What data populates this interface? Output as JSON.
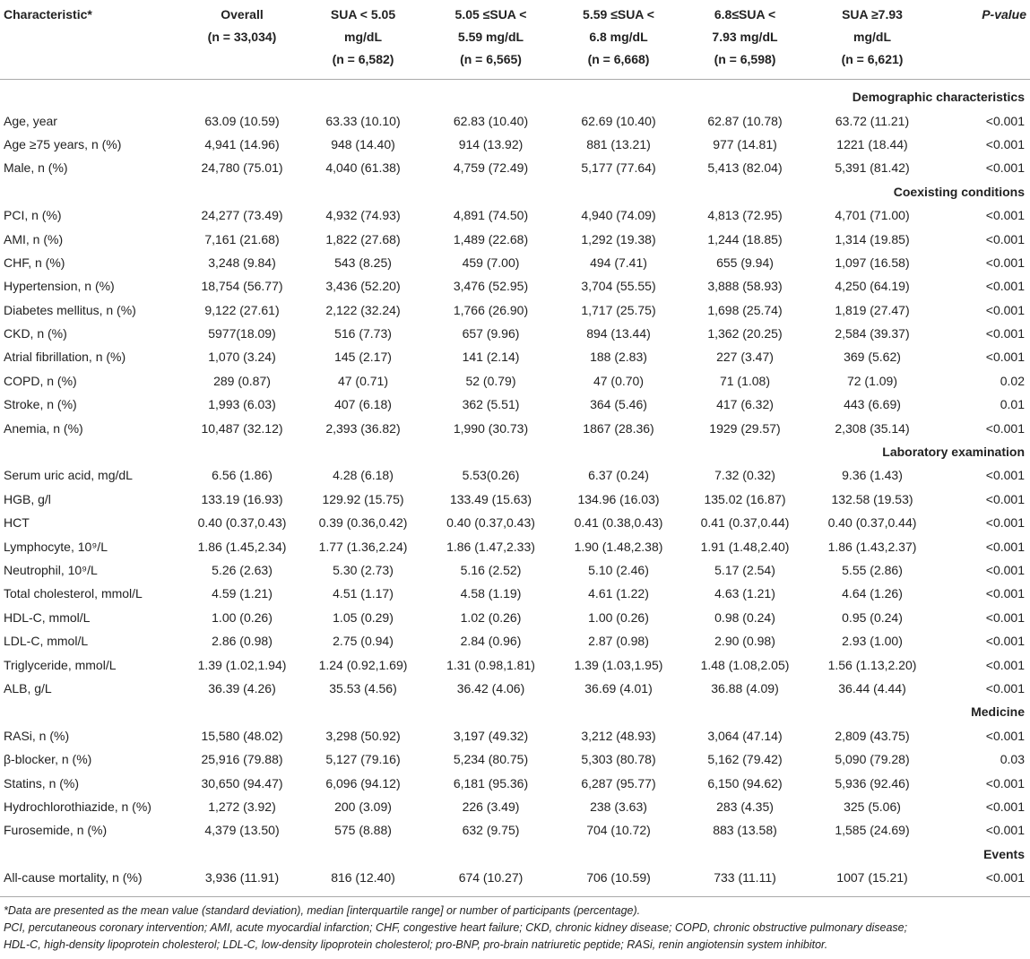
{
  "header": {
    "columns": [
      [
        "Characteristic*"
      ],
      [
        "Overall",
        "(n = 33,034)"
      ],
      [
        "SUA < 5.05",
        "mg/dL",
        "(n = 6,582)"
      ],
      [
        "5.05 ≤SUA <",
        "5.59 mg/dL",
        "(n = 6,565)"
      ],
      [
        "5.59 ≤SUA <",
        "6.8 mg/dL",
        "(n = 6,668)"
      ],
      [
        "6.8≤SUA <",
        "7.93 mg/dL",
        "(n = 6,598)"
      ],
      [
        "SUA ≥7.93",
        "mg/dL",
        "(n = 6,621)"
      ],
      [
        "P-value"
      ]
    ]
  },
  "sections": [
    {
      "title": "Demographic characteristics",
      "rows": [
        [
          "Age, year",
          "63.09 (10.59)",
          "63.33 (10.10)",
          "62.83 (10.40)",
          "62.69 (10.40)",
          "62.87 (10.78)",
          "63.72 (11.21)",
          "<0.001"
        ],
        [
          "Age ≥75 years, n (%)",
          "4,941 (14.96)",
          "948 (14.40)",
          "914 (13.92)",
          "881 (13.21)",
          "977 (14.81)",
          "1221 (18.44)",
          "<0.001"
        ],
        [
          "Male, n (%)",
          "24,780 (75.01)",
          "4,040 (61.38)",
          "4,759 (72.49)",
          "5,177 (77.64)",
          "5,413 (82.04)",
          "5,391 (81.42)",
          "<0.001"
        ]
      ]
    },
    {
      "title": "Coexisting conditions",
      "rows": [
        [
          "PCI, n (%)",
          "24,277 (73.49)",
          "4,932 (74.93)",
          "4,891 (74.50)",
          "4,940 (74.09)",
          "4,813 (72.95)",
          "4,701 (71.00)",
          "<0.001"
        ],
        [
          "AMI, n (%)",
          "7,161 (21.68)",
          "1,822 (27.68)",
          "1,489 (22.68)",
          "1,292 (19.38)",
          "1,244 (18.85)",
          "1,314 (19.85)",
          "<0.001"
        ],
        [
          "CHF, n (%)",
          "3,248 (9.84)",
          "543 (8.25)",
          "459 (7.00)",
          "494 (7.41)",
          "655 (9.94)",
          "1,097 (16.58)",
          "<0.001"
        ],
        [
          "Hypertension, n (%)",
          "18,754 (56.77)",
          "3,436 (52.20)",
          "3,476 (52.95)",
          "3,704 (55.55)",
          "3,888 (58.93)",
          "4,250 (64.19)",
          "<0.001"
        ],
        [
          "Diabetes mellitus, n (%)",
          "9,122 (27.61)",
          "2,122 (32.24)",
          "1,766 (26.90)",
          "1,717 (25.75)",
          "1,698 (25.74)",
          "1,819 (27.47)",
          "<0.001"
        ],
        [
          "CKD, n (%)",
          "5977(18.09)",
          "516 (7.73)",
          "657 (9.96)",
          "894 (13.44)",
          "1,362 (20.25)",
          "2,584 (39.37)",
          "<0.001"
        ],
        [
          "Atrial fibrillation, n (%)",
          "1,070 (3.24)",
          "145 (2.17)",
          "141 (2.14)",
          "188 (2.83)",
          "227 (3.47)",
          "369 (5.62)",
          "<0.001"
        ],
        [
          "COPD, n (%)",
          "289 (0.87)",
          "47 (0.71)",
          "52 (0.79)",
          "47 (0.70)",
          "71 (1.08)",
          "72 (1.09)",
          "0.02"
        ],
        [
          "Stroke, n (%)",
          "1,993 (6.03)",
          "407 (6.18)",
          "362 (5.51)",
          "364 (5.46)",
          "417 (6.32)",
          "443 (6.69)",
          "0.01"
        ],
        [
          "Anemia, n (%)",
          "10,487 (32.12)",
          "2,393 (36.82)",
          "1,990 (30.73)",
          "1867 (28.36)",
          "1929 (29.57)",
          "2,308 (35.14)",
          "<0.001"
        ]
      ]
    },
    {
      "title": "Laboratory examination",
      "rows": [
        [
          "Serum uric acid, mg/dL",
          "6.56 (1.86)",
          "4.28 (6.18)",
          "5.53(0.26)",
          "6.37 (0.24)",
          "7.32 (0.32)",
          "9.36 (1.43)",
          "<0.001"
        ],
        [
          "HGB, g/l",
          "133.19 (16.93)",
          "129.92 (15.75)",
          "133.49 (15.63)",
          "134.96 (16.03)",
          "135.02 (16.87)",
          "132.58 (19.53)",
          "<0.001"
        ],
        [
          "HCT",
          "0.40 (0.37,0.43)",
          "0.39 (0.36,0.42)",
          "0.40 (0.37,0.43)",
          "0.41 (0.38,0.43)",
          "0.41 (0.37,0.44)",
          "0.40 (0.37,0.44)",
          "<0.001"
        ],
        [
          "Lymphocyte, 10⁹/L",
          "1.86 (1.45,2.34)",
          "1.77 (1.36,2.24)",
          "1.86 (1.47,2.33)",
          "1.90 (1.48,2.38)",
          "1.91 (1.48,2.40)",
          "1.86 (1.43,2.37)",
          "<0.001"
        ],
        [
          "Neutrophil, 10⁹/L",
          "5.26 (2.63)",
          "5.30 (2.73)",
          "5.16 (2.52)",
          "5.10 (2.46)",
          "5.17 (2.54)",
          "5.55 (2.86)",
          "<0.001"
        ],
        [
          "Total cholesterol, mmol/L",
          "4.59 (1.21)",
          "4.51 (1.17)",
          "4.58 (1.19)",
          "4.61 (1.22)",
          "4.63 (1.21)",
          "4.64 (1.26)",
          "<0.001"
        ],
        [
          "HDL-C, mmol/L",
          "1.00 (0.26)",
          "1.05 (0.29)",
          "1.02 (0.26)",
          "1.00 (0.26)",
          "0.98 (0.24)",
          "0.95 (0.24)",
          "<0.001"
        ],
        [
          "LDL-C, mmol/L",
          "2.86 (0.98)",
          "2.75 (0.94)",
          "2.84 (0.96)",
          "2.87 (0.98)",
          "2.90 (0.98)",
          "2.93 (1.00)",
          "<0.001"
        ],
        [
          "Triglyceride, mmol/L",
          "1.39 (1.02,1.94)",
          "1.24 (0.92,1.69)",
          "1.31 (0.98,1.81)",
          "1.39 (1.03,1.95)",
          "1.48 (1.08,2.05)",
          "1.56 (1.13,2.20)",
          "<0.001"
        ],
        [
          "ALB, g/L",
          "36.39 (4.26)",
          "35.53 (4.56)",
          "36.42 (4.06)",
          "36.69 (4.01)",
          "36.88 (4.09)",
          "36.44 (4.44)",
          "<0.001"
        ]
      ]
    },
    {
      "title": "Medicine",
      "rows": [
        [
          "RASi, n (%)",
          "15,580 (48.02)",
          "3,298 (50.92)",
          "3,197 (49.32)",
          "3,212 (48.93)",
          "3,064 (47.14)",
          "2,809 (43.75)",
          "<0.001"
        ],
        [
          "β-blocker, n (%)",
          "25,916 (79.88)",
          "5,127 (79.16)",
          "5,234 (80.75)",
          "5,303 (80.78)",
          "5,162 (79.42)",
          "5,090 (79.28)",
          "0.03"
        ],
        [
          "Statins, n (%)",
          "30,650 (94.47)",
          "6,096 (94.12)",
          "6,181 (95.36)",
          "6,287 (95.77)",
          "6,150 (94.62)",
          "5,936 (92.46)",
          "<0.001"
        ],
        [
          "Hydrochlorothiazide, n (%)",
          "1,272 (3.92)",
          "200 (3.09)",
          "226 (3.49)",
          "238 (3.63)",
          "283 (4.35)",
          "325 (5.06)",
          "<0.001"
        ],
        [
          "Furosemide, n (%)",
          "4,379 (13.50)",
          "575 (8.88)",
          "632 (9.75)",
          "704 (10.72)",
          "883 (13.58)",
          "1,585 (24.69)",
          "<0.001"
        ]
      ]
    },
    {
      "title": "Events",
      "rows": [
        [
          "All-cause mortality, n (%)",
          "3,936 (11.91)",
          "816 (12.40)",
          "674 (10.27)",
          "706 (10.59)",
          "733 (11.11)",
          "1007 (15.21)",
          "<0.001"
        ]
      ]
    }
  ],
  "footnotes": [
    "*Data are presented as the mean value (standard deviation), median [interquartile range] or number of participants (percentage).",
    "PCI, percutaneous coronary intervention; AMI, acute myocardial infarction; CHF, congestive heart failure; CKD, chronic kidney disease; COPD, chronic obstructive pulmonary disease;",
    "HDL-C, high-density lipoprotein cholesterol; LDL-C, low-density lipoprotein cholesterol; pro-BNP, pro-brain natriuretic peptide; RASi, renin angiotensin system inhibitor."
  ]
}
